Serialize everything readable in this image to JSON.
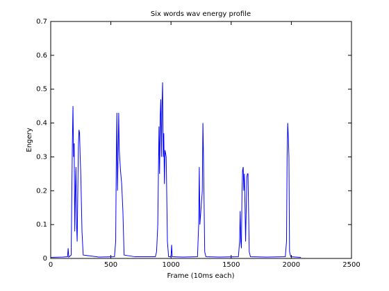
{
  "chart_data": {
    "type": "line",
    "title": "Six words wav energy profile",
    "x_label": "Frame (10ms each)",
    "y_label": "Engery",
    "x": [
      0,
      100,
      140,
      145,
      150,
      170,
      180,
      185,
      190,
      195,
      200,
      205,
      210,
      215,
      220,
      230,
      235,
      240,
      245,
      250,
      260,
      270,
      400,
      530,
      540,
      545,
      550,
      555,
      560,
      565,
      570,
      580,
      590,
      600,
      610,
      700,
      870,
      880,
      890,
      900,
      905,
      910,
      915,
      920,
      925,
      930,
      935,
      940,
      945,
      950,
      960,
      970,
      980,
      1000,
      1005,
      1010,
      1100,
      1220,
      1230,
      1235,
      1240,
      1250,
      1260,
      1265,
      1270,
      1280,
      1290,
      1400,
      1560,
      1570,
      1575,
      1580,
      1585,
      1590,
      1595,
      1600,
      1605,
      1610,
      1620,
      1630,
      1635,
      1640,
      1650,
      1660,
      1800,
      1950,
      1960,
      1965,
      1970,
      1975,
      1980,
      1985,
      1995,
      2080
    ],
    "series": [
      {
        "color": "#0000ff",
        "values": [
          0.003,
          0.004,
          0.005,
          0.03,
          0.004,
          0.01,
          0.34,
          0.45,
          0.3,
          0.34,
          0.08,
          0.2,
          0.27,
          0.1,
          0.05,
          0.33,
          0.38,
          0.37,
          0.3,
          0.25,
          0.08,
          0.01,
          0.004,
          0.005,
          0.05,
          0.28,
          0.43,
          0.2,
          0.3,
          0.43,
          0.32,
          0.26,
          0.22,
          0.14,
          0.01,
          0.005,
          0.005,
          0.02,
          0.1,
          0.39,
          0.25,
          0.42,
          0.47,
          0.3,
          0.45,
          0.52,
          0.3,
          0.37,
          0.22,
          0.32,
          0.3,
          0.05,
          0.005,
          0.005,
          0.04,
          0.005,
          0.004,
          0.005,
          0.1,
          0.27,
          0.1,
          0.15,
          0.2,
          0.4,
          0.3,
          0.02,
          0.005,
          0.004,
          0.005,
          0.05,
          0.14,
          0.05,
          0.03,
          0.2,
          0.26,
          0.27,
          0.2,
          0.25,
          0.05,
          0.24,
          0.25,
          0.25,
          0.02,
          0.005,
          0.004,
          0.005,
          0.05,
          0.3,
          0.4,
          0.36,
          0.3,
          0.02,
          0.005,
          0.003
        ]
      }
    ],
    "xlim": [
      0,
      2500
    ],
    "xticks": [
      0,
      500,
      1000,
      1500,
      2000,
      2500
    ],
    "ylim": [
      0,
      0.7
    ],
    "yticks": [
      0,
      0.1,
      0.2,
      0.3,
      0.4,
      0.5,
      0.6,
      0.7
    ],
    "grid": false
  }
}
